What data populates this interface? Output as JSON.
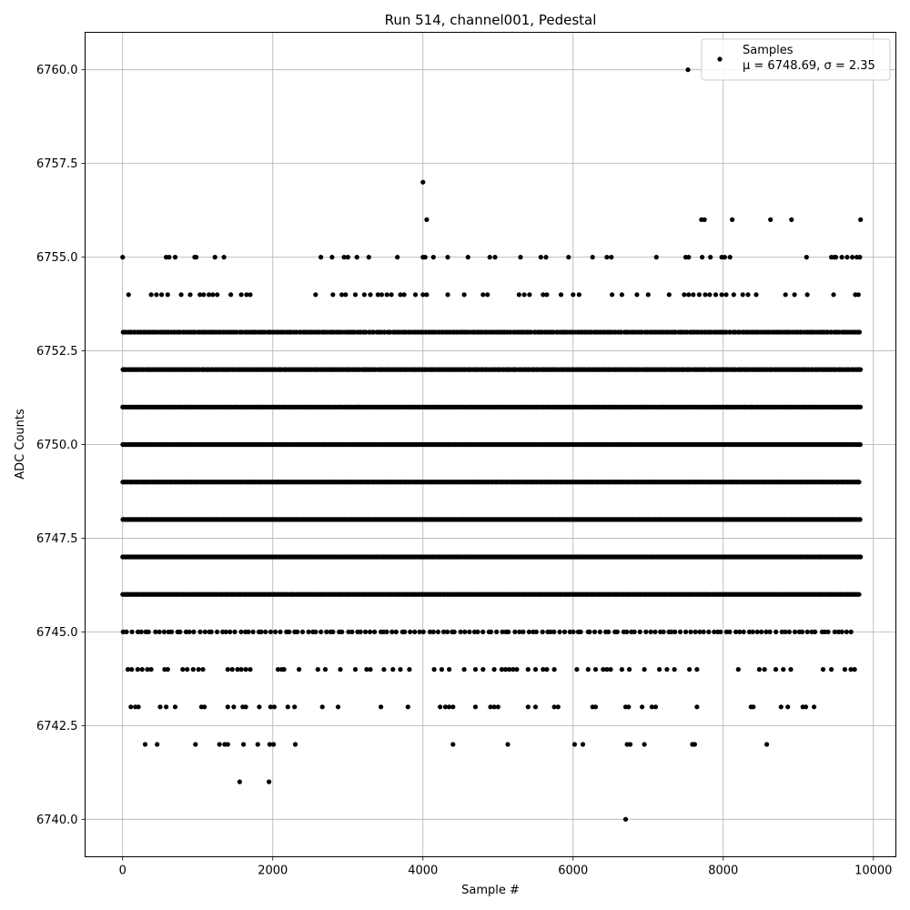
{
  "chart_data": {
    "type": "scatter",
    "title": "Run 514, channel001, Pedestal",
    "xlabel": "Sample #",
    "ylabel": "ADC Counts",
    "xlim": [
      -500,
      10300
    ],
    "ylim": [
      6739.0,
      6761.0
    ],
    "x_ticks": [
      0,
      2000,
      4000,
      6000,
      8000,
      10000
    ],
    "x_tick_labels": [
      "0",
      "2000",
      "4000",
      "6000",
      "8000",
      "10000"
    ],
    "y_ticks": [
      6740.0,
      6742.5,
      6745.0,
      6747.5,
      6750.0,
      6752.5,
      6755.0,
      6757.5,
      6760.0
    ],
    "y_tick_labels": [
      "6740.0",
      "6742.5",
      "6745.0",
      "6747.5",
      "6750.0",
      "6752.5",
      "6755.0",
      "6757.5",
      "6760.0"
    ],
    "grid": true,
    "legend_position": "top-right",
    "series": [
      {
        "name": "Samples",
        "color": "#000000",
        "x_range": [
          0,
          9830
        ],
        "sample_count": 9831,
        "levels": [
          {
            "y": 6740,
            "x": [
              6700
            ]
          },
          {
            "y": 6741,
            "x": [
              1560,
              1950
            ]
          },
          {
            "y": 6742,
            "x": [
              300,
              460,
              970,
              1290,
              1360,
              1400,
              1610,
              1800,
              1960,
              2010,
              2300,
              4400,
              5130,
              6020,
              6130,
              6720,
              6760,
              6950,
              7590,
              7620,
              8580
            ]
          },
          {
            "y": 6743,
            "x": [
              110,
              170,
              210,
              500,
              580,
              700,
              1050,
              1090,
              1400,
              1480,
              1600,
              1640,
              1820,
              1970,
              2020,
              2200,
              2290,
              2660,
              2870,
              3440,
              3800,
              4230,
              4300,
              4350,
              4400,
              4700,
              4900,
              4950,
              5000,
              5400,
              5500,
              5750,
              5800,
              6260,
              6300,
              6700,
              6740,
              6920,
              7050,
              7100,
              7650,
              8370,
              8400,
              8770,
              8860,
              9060,
              9100,
              9210
            ]
          },
          {
            "y": 6744,
            "x": [
              70,
              120,
              200,
              260,
              330,
              380,
              560,
              600,
              800,
              860,
              940,
              1010,
              1070,
              1400,
              1460,
              1530,
              1580,
              1640,
              1700,
              2070,
              2120,
              2150,
              2350,
              2600,
              2700,
              2900,
              3100,
              3250,
              3300,
              3480,
              3600,
              3700,
              3820,
              4150,
              4250,
              4350,
              4550,
              4700,
              4800,
              4950,
              5050,
              5100,
              5150,
              5200,
              5250,
              5400,
              5500,
              5600,
              5650,
              5750,
              6050,
              6200,
              6300,
              6400,
              6450,
              6500,
              6650,
              6750,
              6950,
              7150,
              7250,
              7350,
              7550,
              7650,
              8200,
              8480,
              8550,
              8700,
              8800,
              8900,
              9330,
              9440,
              9620,
              9700,
              9750
            ]
          },
          {
            "y": 6745,
            "lo": 0,
            "hi": 9760,
            "step": 60,
            "jitter": 23
          },
          {
            "y": 6746,
            "lo": 0,
            "hi": 9810,
            "step": 15,
            "jitter": 5
          },
          {
            "y": 6747,
            "lo": 0,
            "hi": 9830,
            "step": 12,
            "jitter": 4
          },
          {
            "y": 6748,
            "lo": 0,
            "hi": 9830,
            "step": 14,
            "jitter": 5
          },
          {
            "y": 6749,
            "lo": 0,
            "hi": 9820,
            "step": 14,
            "jitter": 5
          },
          {
            "y": 6750,
            "lo": 0,
            "hi": 9830,
            "step": 14,
            "jitter": 5
          },
          {
            "y": 6751,
            "lo": 0,
            "hi": 9830,
            "step": 16,
            "jitter": 6
          },
          {
            "y": 6752,
            "lo": 0,
            "hi": 9830,
            "step": 18,
            "jitter": 7
          },
          {
            "y": 6753,
            "lo": 0,
            "hi": 9830,
            "step": 25,
            "jitter": 10
          },
          {
            "y": 6754,
            "x": [
              80,
              380,
              450,
              520,
              600,
              780,
              900,
              1030,
              1080,
              1150,
              1200,
              1260,
              1440,
              1580,
              1650,
              1700,
              2570,
              2800,
              2920,
              2970,
              3100,
              3220,
              3300,
              3400,
              3450,
              3520,
              3580,
              3700,
              3750,
              3900,
              4000,
              4050,
              4330,
              4550,
              4800,
              4860,
              5280,
              5350,
              5420,
              5600,
              5650,
              5840,
              6000,
              6080,
              6520,
              6650,
              6850,
              7000,
              7280,
              7480,
              7540,
              7600,
              7680,
              7760,
              7820,
              7900,
              7980,
              8040,
              8140,
              8260,
              8330,
              8440,
              8830,
              8950,
              9120,
              9470,
              9760,
              9800
            ]
          },
          {
            "y": 6755,
            "x": [
              0,
              580,
              620,
              700,
              960,
              980,
              1230,
              1350,
              2640,
              2790,
              2950,
              3000,
              3120,
              3280,
              3660,
              4000,
              4030,
              4140,
              4330,
              4600,
              4890,
              4960,
              5300,
              5570,
              5640,
              5940,
              6260,
              6450,
              6510,
              7110,
              7500,
              7540,
              7720,
              7830,
              7980,
              8020,
              8090,
              9110,
              9440,
              9480,
              9500,
              9580,
              9650,
              9720,
              9780,
              9820
            ]
          },
          {
            "y": 6756,
            "x": [
              4050,
              7710,
              7750,
              8120,
              8630,
              8910,
              9830
            ]
          },
          {
            "y": 6757,
            "x": [
              4000
            ]
          },
          {
            "y": 6760,
            "x": [
              7530
            ]
          }
        ]
      }
    ]
  },
  "legend": {
    "label": "Samples",
    "stats": "μ = 6748.69, σ = 2.35"
  }
}
